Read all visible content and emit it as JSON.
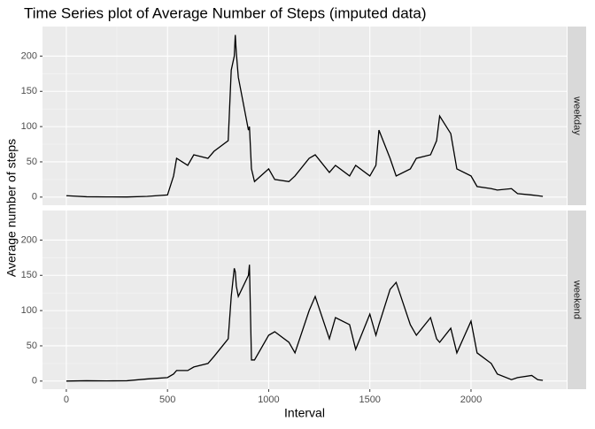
{
  "chart_data": {
    "type": "line",
    "title": "Time Series plot of Average Number of Steps (imputed data)",
    "xlabel": "Interval",
    "ylabel": "Average number of steps",
    "x": [
      0,
      100,
      200,
      300,
      400,
      500,
      530,
      545,
      600,
      630,
      700,
      730,
      800,
      815,
      830,
      835,
      840,
      850,
      900,
      905,
      915,
      930,
      1000,
      1030,
      1100,
      1130,
      1200,
      1230,
      1300,
      1330,
      1400,
      1430,
      1500,
      1530,
      1545,
      1600,
      1630,
      1700,
      1730,
      1800,
      1830,
      1845,
      1900,
      1930,
      2000,
      2030,
      2100,
      2130,
      2200,
      2230,
      2300,
      2330,
      2355
    ],
    "series": [
      {
        "name": "weekday",
        "color": "#000000",
        "values": [
          2,
          0.5,
          0.3,
          0.2,
          1,
          3,
          30,
          55,
          45,
          60,
          55,
          65,
          80,
          180,
          200,
          230,
          205,
          170,
          95,
          100,
          40,
          22,
          40,
          25,
          22,
          30,
          55,
          60,
          35,
          45,
          30,
          45,
          30,
          45,
          95,
          55,
          30,
          40,
          55,
          60,
          80,
          115,
          90,
          40,
          30,
          15,
          12,
          10,
          12,
          5,
          3,
          2,
          1
        ]
      },
      {
        "name": "weekend",
        "color": "#000000",
        "values": [
          0,
          0.5,
          0.3,
          0.5,
          3,
          5,
          10,
          15,
          15,
          20,
          25,
          35,
          60,
          120,
          160,
          155,
          135,
          120,
          150,
          165,
          30,
          30,
          65,
          70,
          55,
          40,
          100,
          120,
          60,
          90,
          80,
          45,
          95,
          65,
          80,
          130,
          140,
          80,
          65,
          90,
          60,
          55,
          75,
          40,
          85,
          40,
          25,
          10,
          2,
          5,
          8,
          2,
          1
        ]
      }
    ],
    "xlim": [
      -117.75,
      2472.75
    ],
    "ylim": [
      -11.5,
      241.9
    ],
    "xticks": [
      0,
      500,
      1000,
      1500,
      2000
    ],
    "yticks": [
      0,
      50,
      100,
      150,
      200
    ],
    "grid": true
  }
}
